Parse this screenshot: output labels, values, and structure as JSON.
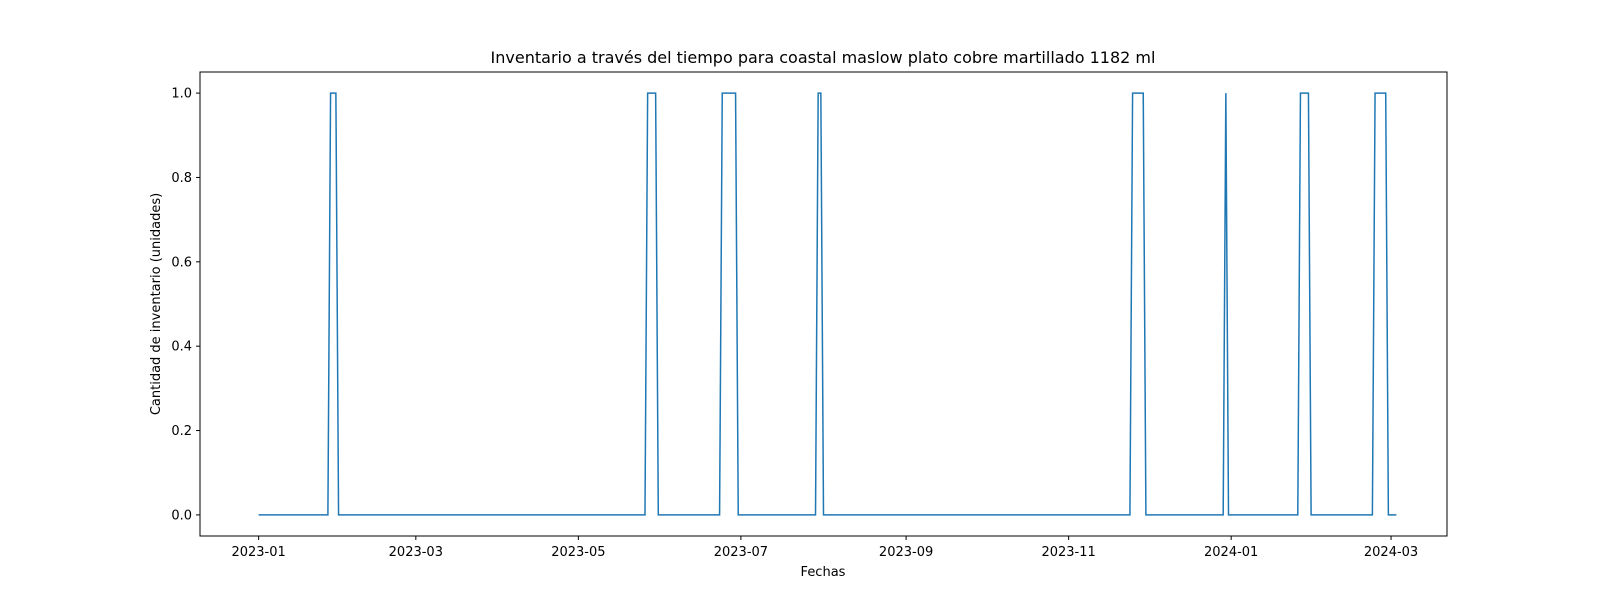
{
  "chart_data": {
    "type": "line",
    "title": "Inventario a través del tiempo para coastal maslow plato cobre martillado 1182 ml",
    "xlabel": "Fechas",
    "ylabel": "Cantidad de inventario (unidades)",
    "xlim": [
      "2022-12-10",
      "2024-03-22"
    ],
    "ylim": [
      -0.05,
      1.05
    ],
    "x_ticks": [
      "2023-01",
      "2023-03",
      "2023-05",
      "2023-07",
      "2023-09",
      "2023-11",
      "2024-01",
      "2024-03"
    ],
    "y_ticks": [
      0.0,
      0.2,
      0.4,
      0.6,
      0.8,
      1.0
    ],
    "y_tick_labels": [
      "0.0",
      "0.2",
      "0.4",
      "0.6",
      "0.8",
      "1.0"
    ],
    "grid": false,
    "series": [
      {
        "color": "#1f77b4",
        "x": [
          "2023-01-01",
          "2023-01-27",
          "2023-01-28",
          "2023-01-30",
          "2023-01-31",
          "2023-05-26",
          "2023-05-27",
          "2023-05-30",
          "2023-05-31",
          "2023-06-23",
          "2023-06-24",
          "2023-06-29",
          "2023-06-30",
          "2023-07-29",
          "2023-07-30",
          "2023-07-31",
          "2023-08-01",
          "2023-11-24",
          "2023-11-25",
          "2023-11-29",
          "2023-11-30",
          "2023-12-29",
          "2023-12-30",
          "2023-12-31",
          "2024-01-26",
          "2024-01-27",
          "2024-01-30",
          "2024-01-31",
          "2024-02-23",
          "2024-02-24",
          "2024-02-28",
          "2024-02-29",
          "2024-03-03"
        ],
        "values": [
          0,
          0,
          1,
          1,
          0,
          0,
          1,
          1,
          0,
          0,
          1,
          1,
          0,
          0,
          1,
          1,
          0,
          0,
          1,
          1,
          0,
          0,
          1,
          0,
          0,
          1,
          1,
          0,
          0,
          1,
          1,
          0,
          0
        ]
      }
    ]
  }
}
